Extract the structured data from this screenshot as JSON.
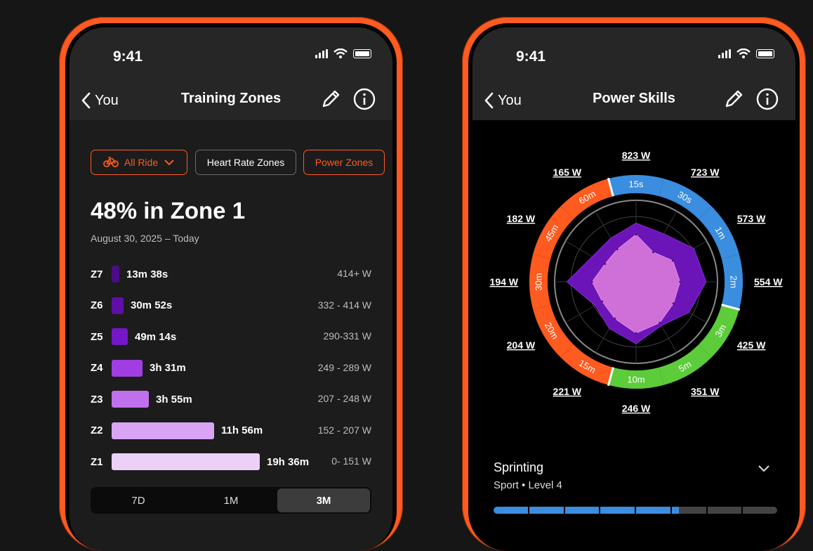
{
  "colors": {
    "accent": "#ff5a1f",
    "blue": "#3a8ddf",
    "green": "#5dcc3b"
  },
  "left": {
    "status": {
      "time": "9:41"
    },
    "nav": {
      "back_label": "You",
      "title": "Training Zones",
      "icons": [
        "pencil-icon",
        "info-icon"
      ]
    },
    "filters": {
      "sport_label": "All Ride",
      "sport_icon": "bike-icon",
      "heart_label": "Heart Rate Zones",
      "power_label": "Power Zones"
    },
    "headline": "48% in Zone 1",
    "date_range": "August 30, 2025  – Today",
    "zones": [
      {
        "label": "Z7",
        "duration": "13m 38s",
        "range": "414+ W",
        "fraction": 0.05,
        "color": "#4a0d86"
      },
      {
        "label": "Z6",
        "duration": "30m 52s",
        "range": "332 - 414 W",
        "fraction": 0.08,
        "color": "#5d0fa7"
      },
      {
        "label": "Z5",
        "duration": "49m 14s",
        "range": "290-331 W",
        "fraction": 0.11,
        "color": "#7516c7"
      },
      {
        "label": "Z4",
        "duration": "3h 31m",
        "range": "249 - 289 W",
        "fraction": 0.21,
        "color": "#a03ee4"
      },
      {
        "label": "Z3",
        "duration": "3h 55m",
        "range": "207 - 248 W",
        "fraction": 0.25,
        "color": "#c070ec"
      },
      {
        "label": "Z2",
        "duration": "11h 56m",
        "range": "152 - 207 W",
        "fraction": 0.69,
        "color": "#d9a4f3"
      },
      {
        "label": "Z1",
        "duration": "19h 36m",
        "range": "0- 151 W",
        "fraction": 1.0,
        "color": "#ecd0f8"
      }
    ],
    "segments": [
      {
        "label": "7D",
        "active": false
      },
      {
        "label": "1M",
        "active": false
      },
      {
        "label": "3M",
        "active": true
      }
    ]
  },
  "right": {
    "status": {
      "time": "9:41"
    },
    "nav": {
      "back_label": "You",
      "title": "Power Skills",
      "icons": [
        "pencil-icon",
        "info-icon"
      ]
    },
    "radar": {
      "axes": [
        {
          "duration": "15s",
          "watts": "823 W",
          "ring": "blue"
        },
        {
          "duration": "30s",
          "watts": "723 W",
          "ring": "blue"
        },
        {
          "duration": "1m",
          "watts": "573 W",
          "ring": "blue"
        },
        {
          "duration": "2m",
          "watts": "554 W",
          "ring": "blue"
        },
        {
          "duration": "3m",
          "watts": "425 W",
          "ring": "green"
        },
        {
          "duration": "5m",
          "watts": "351 W",
          "ring": "green"
        },
        {
          "duration": "10m",
          "watts": "246 W",
          "ring": "green"
        },
        {
          "duration": "15m",
          "watts": "221 W",
          "ring": "orange"
        },
        {
          "duration": "20m",
          "watts": "204 W",
          "ring": "orange"
        },
        {
          "duration": "30m",
          "watts": "194 W",
          "ring": "orange"
        },
        {
          "duration": "45m",
          "watts": "182 W",
          "ring": "orange"
        },
        {
          "duration": "60m",
          "watts": "165 W",
          "ring": "orange"
        }
      ],
      "outer_shape": [
        0.72,
        0.68,
        0.82,
        0.86,
        0.75,
        0.62,
        0.76,
        0.66,
        0.58,
        0.85,
        0.62,
        0.62
      ],
      "inner_shape": [
        0.58,
        0.42,
        0.52,
        0.54,
        0.53,
        0.58,
        0.63,
        0.52,
        0.48,
        0.54,
        0.44,
        0.46
      ]
    },
    "skill": {
      "title": "Sprinting",
      "sport": "Sport",
      "level": "Level 4",
      "level_fraction": 0.65,
      "segments": 8
    }
  }
}
